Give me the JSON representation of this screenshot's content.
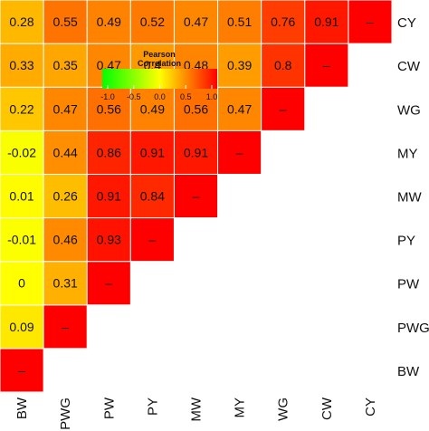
{
  "chart_data": {
    "type": "heatmap",
    "variables": [
      "BW",
      "PWG",
      "PW",
      "PY",
      "MW",
      "MY",
      "WG",
      "CW",
      "CY"
    ],
    "diagonal_label": "–",
    "matrix": [
      [
        1,
        0.09,
        0,
        -0.01,
        0.01,
        -0.02,
        0.22,
        0.33,
        0.28
      ],
      [
        0.09,
        1,
        0.31,
        0.46,
        0.26,
        0.44,
        0.47,
        0.35,
        0.55
      ],
      [
        0,
        0.31,
        1,
        0.93,
        0.91,
        0.86,
        0.56,
        0.47,
        0.49
      ],
      [
        -0.01,
        0.46,
        0.93,
        1,
        0.84,
        0.91,
        0.49,
        0.4,
        0.52
      ],
      [
        0.01,
        0.26,
        0.91,
        0.84,
        1,
        0.91,
        0.56,
        0.48,
        0.47
      ],
      [
        -0.02,
        0.44,
        0.86,
        0.91,
        0.91,
        1,
        0.47,
        0.39,
        0.51
      ],
      [
        0.22,
        0.47,
        0.56,
        0.49,
        0.56,
        0.47,
        1,
        0.8,
        0.76
      ],
      [
        0.33,
        0.35,
        0.47,
        0.4,
        0.48,
        0.39,
        0.8,
        1,
        0.91
      ],
      [
        0.28,
        0.55,
        0.49,
        0.52,
        0.47,
        0.51,
        0.76,
        0.91,
        1
      ]
    ],
    "cell_labels": [
      [
        "–",
        "0.09",
        "0",
        "-0.01",
        "0.01",
        "-0.02",
        "0.22",
        "0.33",
        "0.28"
      ],
      [
        "0.09",
        "–",
        "0.31",
        "0.46",
        "0.26",
        "0.44",
        "0.47",
        "0.35",
        "0.55"
      ],
      [
        "0",
        "0.31",
        "–",
        "0.93",
        "0.91",
        "0.86",
        "0.56",
        "0.47",
        "0.49"
      ],
      [
        "-0.01",
        "0.46",
        "0.93",
        "–",
        "0.84",
        "0.91",
        "0.49",
        "0.4",
        "0.52"
      ],
      [
        "0.01",
        "0.26",
        "0.91",
        "0.84",
        "–",
        "0.91",
        "0.56",
        "0.48",
        "0.47"
      ],
      [
        "-0.02",
        "0.44",
        "0.86",
        "0.91",
        "0.91",
        "–",
        "0.47",
        "0.39",
        "0.51"
      ],
      [
        "0.22",
        "0.47",
        "0.56",
        "0.49",
        "0.56",
        "0.47",
        "–",
        "0.8",
        "0.76"
      ],
      [
        "0.33",
        "0.35",
        "0.47",
        "0.4",
        "0.48",
        "0.39",
        "0.8",
        "–",
        "0.91"
      ],
      [
        "0.28",
        "0.55",
        "0.49",
        "0.52",
        "0.47",
        "0.51",
        "0.76",
        "0.91",
        "–"
      ]
    ],
    "triangle": "lower (BW on bottom-left, CY on top-right)",
    "legend": {
      "title_line1": "Pearson",
      "title_line2": "Correlation",
      "ticks": [
        "-1.0",
        "-0.5",
        "0.0",
        "0.5",
        "1.0"
      ],
      "tick_values": [
        -1,
        -0.5,
        0,
        0.5,
        1
      ],
      "range": [
        -1,
        1
      ],
      "placement": "top-left"
    },
    "colors": {
      "low": "#00ff00",
      "mid": "#ffff00",
      "high": "#ff0000",
      "cell_border": "#ffffff"
    },
    "grid": false
  }
}
